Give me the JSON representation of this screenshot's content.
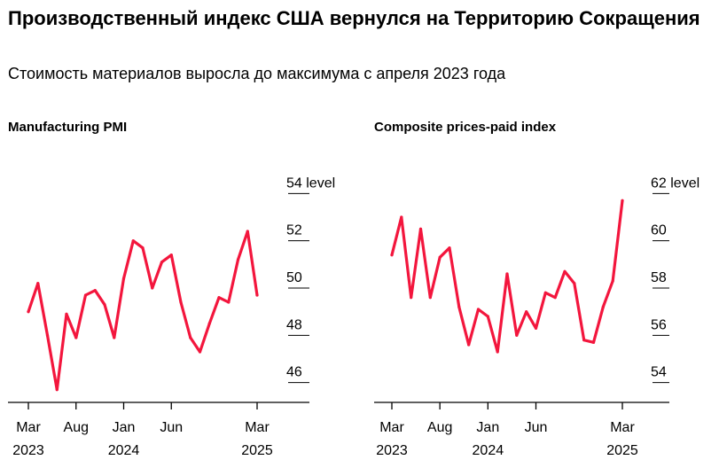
{
  "header": {
    "title": "Производственный индекс США вернулся на Территорию Сокращения",
    "subtitle": "Стоимость материалов выросла до максимума с апреля 2023 года"
  },
  "colors": {
    "line": "#f3163d"
  },
  "chart_data": [
    {
      "type": "line",
      "title": "Manufacturing PMI",
      "xlabel": "",
      "ylabel": "level",
      "ylim": [
        45.5,
        54.5
      ],
      "yticks": [
        {
          "value": 54,
          "label": "54 level"
        },
        {
          "value": 52,
          "label": "52"
        },
        {
          "value": 50,
          "label": "50"
        },
        {
          "value": 48,
          "label": "48"
        },
        {
          "value": 46,
          "label": "46"
        }
      ],
      "x_count": 25,
      "xticks": [
        {
          "index": 0,
          "line1": "Mar",
          "line2": "2023"
        },
        {
          "index": 5,
          "line1": "Aug",
          "line2": ""
        },
        {
          "index": 10,
          "line1": "Jan",
          "line2": "2024"
        },
        {
          "index": 15,
          "line1": "Jun",
          "line2": ""
        },
        {
          "index": 24,
          "line1": "Mar",
          "line2": "2025"
        }
      ],
      "values": [
        49.0,
        50.2,
        48.0,
        45.7,
        48.9,
        47.9,
        49.7,
        49.9,
        49.3,
        47.9,
        50.4,
        52.0,
        51.7,
        50.0,
        51.1,
        51.4,
        49.4,
        47.9,
        47.3,
        48.5,
        49.6,
        49.4,
        51.2,
        52.4,
        49.7
      ]
    },
    {
      "type": "line",
      "title": "Composite prices-paid index",
      "xlabel": "",
      "ylabel": "level",
      "ylim": [
        53.5,
        62.5
      ],
      "yticks": [
        {
          "value": 62,
          "label": "62 level"
        },
        {
          "value": 60,
          "label": "60"
        },
        {
          "value": 58,
          "label": "58"
        },
        {
          "value": 56,
          "label": "56"
        },
        {
          "value": 54,
          "label": "54"
        }
      ],
      "x_count": 25,
      "xticks": [
        {
          "index": 0,
          "line1": "Mar",
          "line2": "2023"
        },
        {
          "index": 5,
          "line1": "Aug",
          "line2": ""
        },
        {
          "index": 10,
          "line1": "Jan",
          "line2": "2024"
        },
        {
          "index": 15,
          "line1": "Jun",
          "line2": ""
        },
        {
          "index": 24,
          "line1": "Mar",
          "line2": "2025"
        }
      ],
      "values": [
        59.4,
        61.0,
        57.6,
        60.5,
        57.6,
        59.3,
        59.7,
        57.2,
        55.6,
        57.1,
        56.8,
        55.3,
        58.6,
        56.0,
        57.0,
        56.3,
        57.8,
        57.6,
        58.7,
        58.2,
        55.8,
        55.7,
        57.2,
        58.3,
        61.7
      ]
    }
  ]
}
